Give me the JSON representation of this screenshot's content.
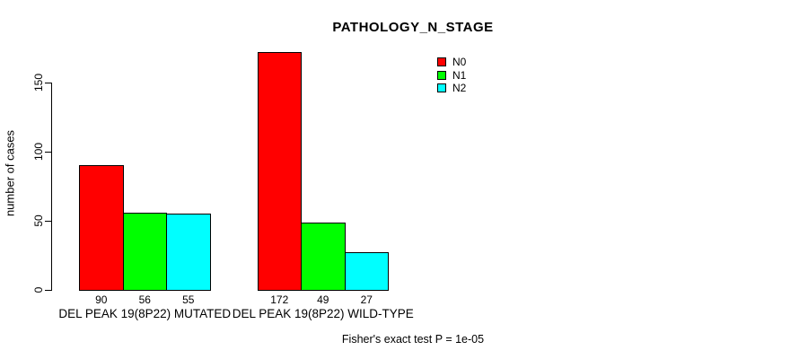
{
  "title": "PATHOLOGY_N_STAGE",
  "footer": "Fisher's exact test P = 1e-05",
  "y_axis": {
    "label": "number of cases",
    "ticks": [
      0,
      50,
      100,
      150
    ]
  },
  "legend": {
    "position": "top-right",
    "items": [
      {
        "label": "N0",
        "color": "#FF0000"
      },
      {
        "label": "N1",
        "color": "#00FF00"
      },
      {
        "label": "N2",
        "color": "#00FFFF"
      }
    ]
  },
  "chart_data": {
    "type": "bar",
    "title": "PATHOLOGY_N_STAGE",
    "xlabel": "",
    "ylabel": "number of cases",
    "ylim": [
      0,
      150
    ],
    "yticks": [
      0,
      50,
      100,
      150
    ],
    "grid": false,
    "bar_value_labels_shown": true,
    "legend_position": "top-right",
    "categories": [
      "DEL PEAK 19(8P22) MUTATED",
      "DEL PEAK 19(8P22) WILD-TYPE"
    ],
    "series": [
      {
        "name": "N0",
        "color": "#FF0000",
        "values": [
          90,
          172
        ]
      },
      {
        "name": "N1",
        "color": "#00FF00",
        "values": [
          56,
          49
        ]
      },
      {
        "name": "N2",
        "color": "#00FFFF",
        "values": [
          55,
          27
        ]
      }
    ],
    "annotation": "Fisher's exact test P = 1e-05"
  },
  "colors": {
    "background": "#FFFFFF",
    "axis": "#000000",
    "text": "#000000"
  }
}
